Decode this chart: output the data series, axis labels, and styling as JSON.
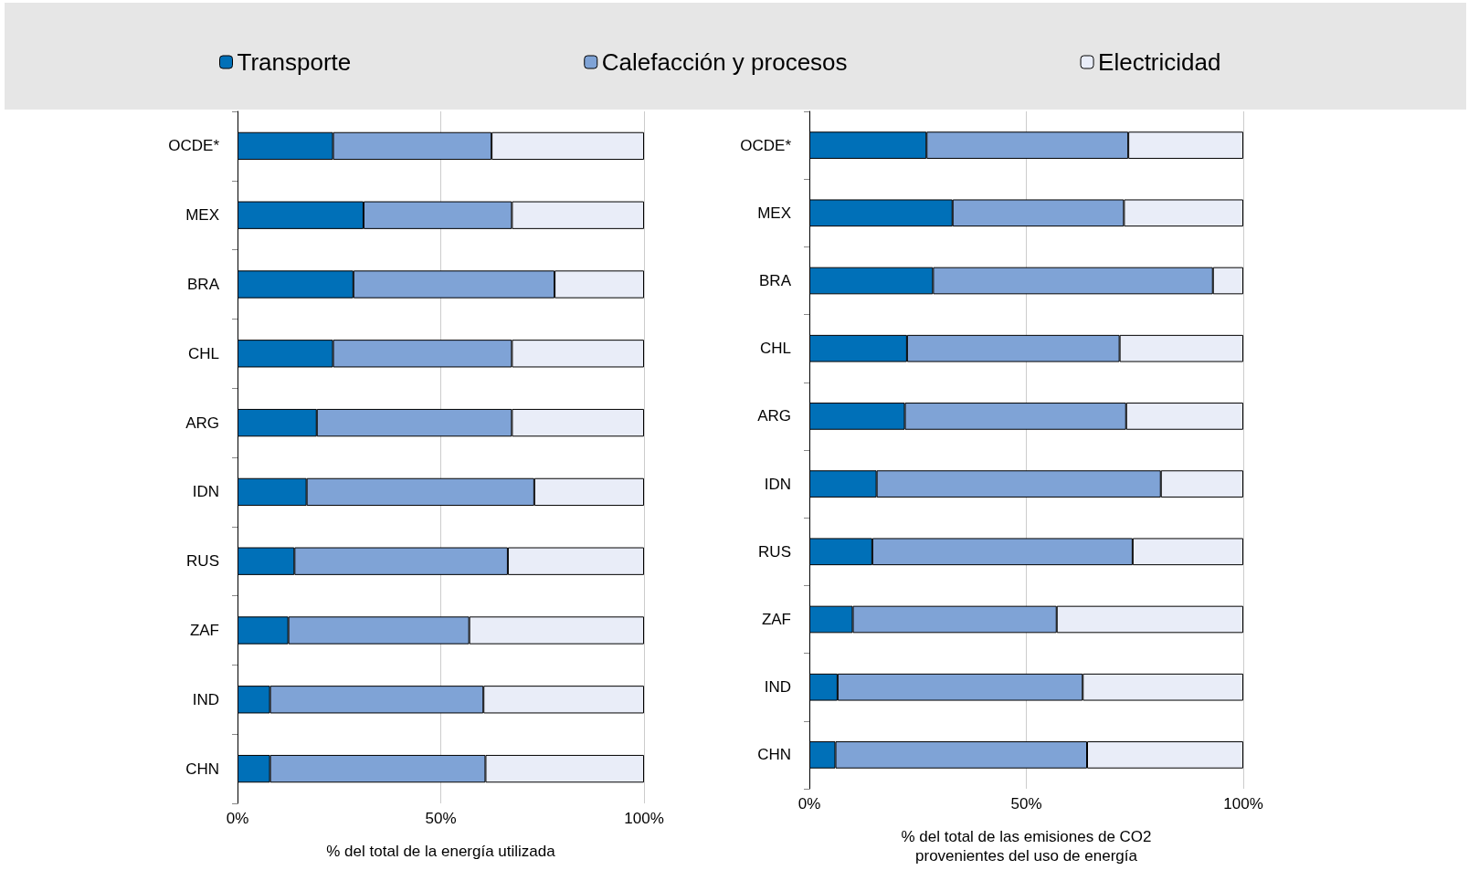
{
  "chart_data": [
    {
      "type": "bar",
      "orientation": "horizontal",
      "stacked": true,
      "categories": [
        "OCDE*",
        "MEX",
        "BRA",
        "CHL",
        "ARG",
        "IDN",
        "RUS",
        "ZAF",
        "IND",
        "CHN"
      ],
      "series": [
        {
          "name": "Transporte",
          "color": "#0070b8",
          "values": [
            23.5,
            31,
            28.5,
            23.5,
            19.5,
            17,
            14,
            12.5,
            8,
            8
          ]
        },
        {
          "name": "Calefacción y procesos",
          "color": "#7fa3d6",
          "values": [
            39,
            36.5,
            49.5,
            44,
            48,
            56,
            52.5,
            44.5,
            52.5,
            53
          ]
        },
        {
          "name": "Electricidad",
          "color": "#e9edf8",
          "values": [
            37.5,
            32.5,
            22,
            32.5,
            32.5,
            27,
            33.5,
            43,
            39.5,
            39
          ]
        }
      ],
      "xlim": [
        0,
        100
      ],
      "xticks": [
        {
          "value": 0,
          "label": "0%"
        },
        {
          "value": 50,
          "label": "50%"
        },
        {
          "value": 100,
          "label": "100%"
        }
      ],
      "xlabel": "% del total de la energía utilizada",
      "grid": "x",
      "legend": "top"
    },
    {
      "type": "bar",
      "orientation": "horizontal",
      "stacked": true,
      "categories": [
        "OCDE*",
        "MEX",
        "BRA",
        "CHL",
        "ARG",
        "IDN",
        "RUS",
        "ZAF",
        "IND",
        "CHN"
      ],
      "series": [
        {
          "color": "#0070b8",
          "values": [
            27,
            33,
            28.5,
            22.5,
            22,
            15.5,
            14.5,
            10,
            6.5,
            6
          ]
        },
        {
          "color": "#7fa3d6",
          "values": [
            46.5,
            39.5,
            64.5,
            49,
            51,
            65.5,
            60,
            47,
            56.5,
            58
          ]
        },
        {
          "color": "#e9edf8",
          "values": [
            26.5,
            27.5,
            7,
            28.5,
            27,
            19,
            25.5,
            43,
            37,
            36
          ]
        }
      ],
      "xlim": [
        0,
        100
      ],
      "xticks": [
        {
          "value": 0,
          "label": "0%"
        },
        {
          "value": 50,
          "label": "50%"
        },
        {
          "value": 100,
          "label": "100%"
        }
      ],
      "xlabel": "% del total de las emisiones de CO2\nprovenientes del uso de energía",
      "grid": "x",
      "legend": false
    }
  ]
}
